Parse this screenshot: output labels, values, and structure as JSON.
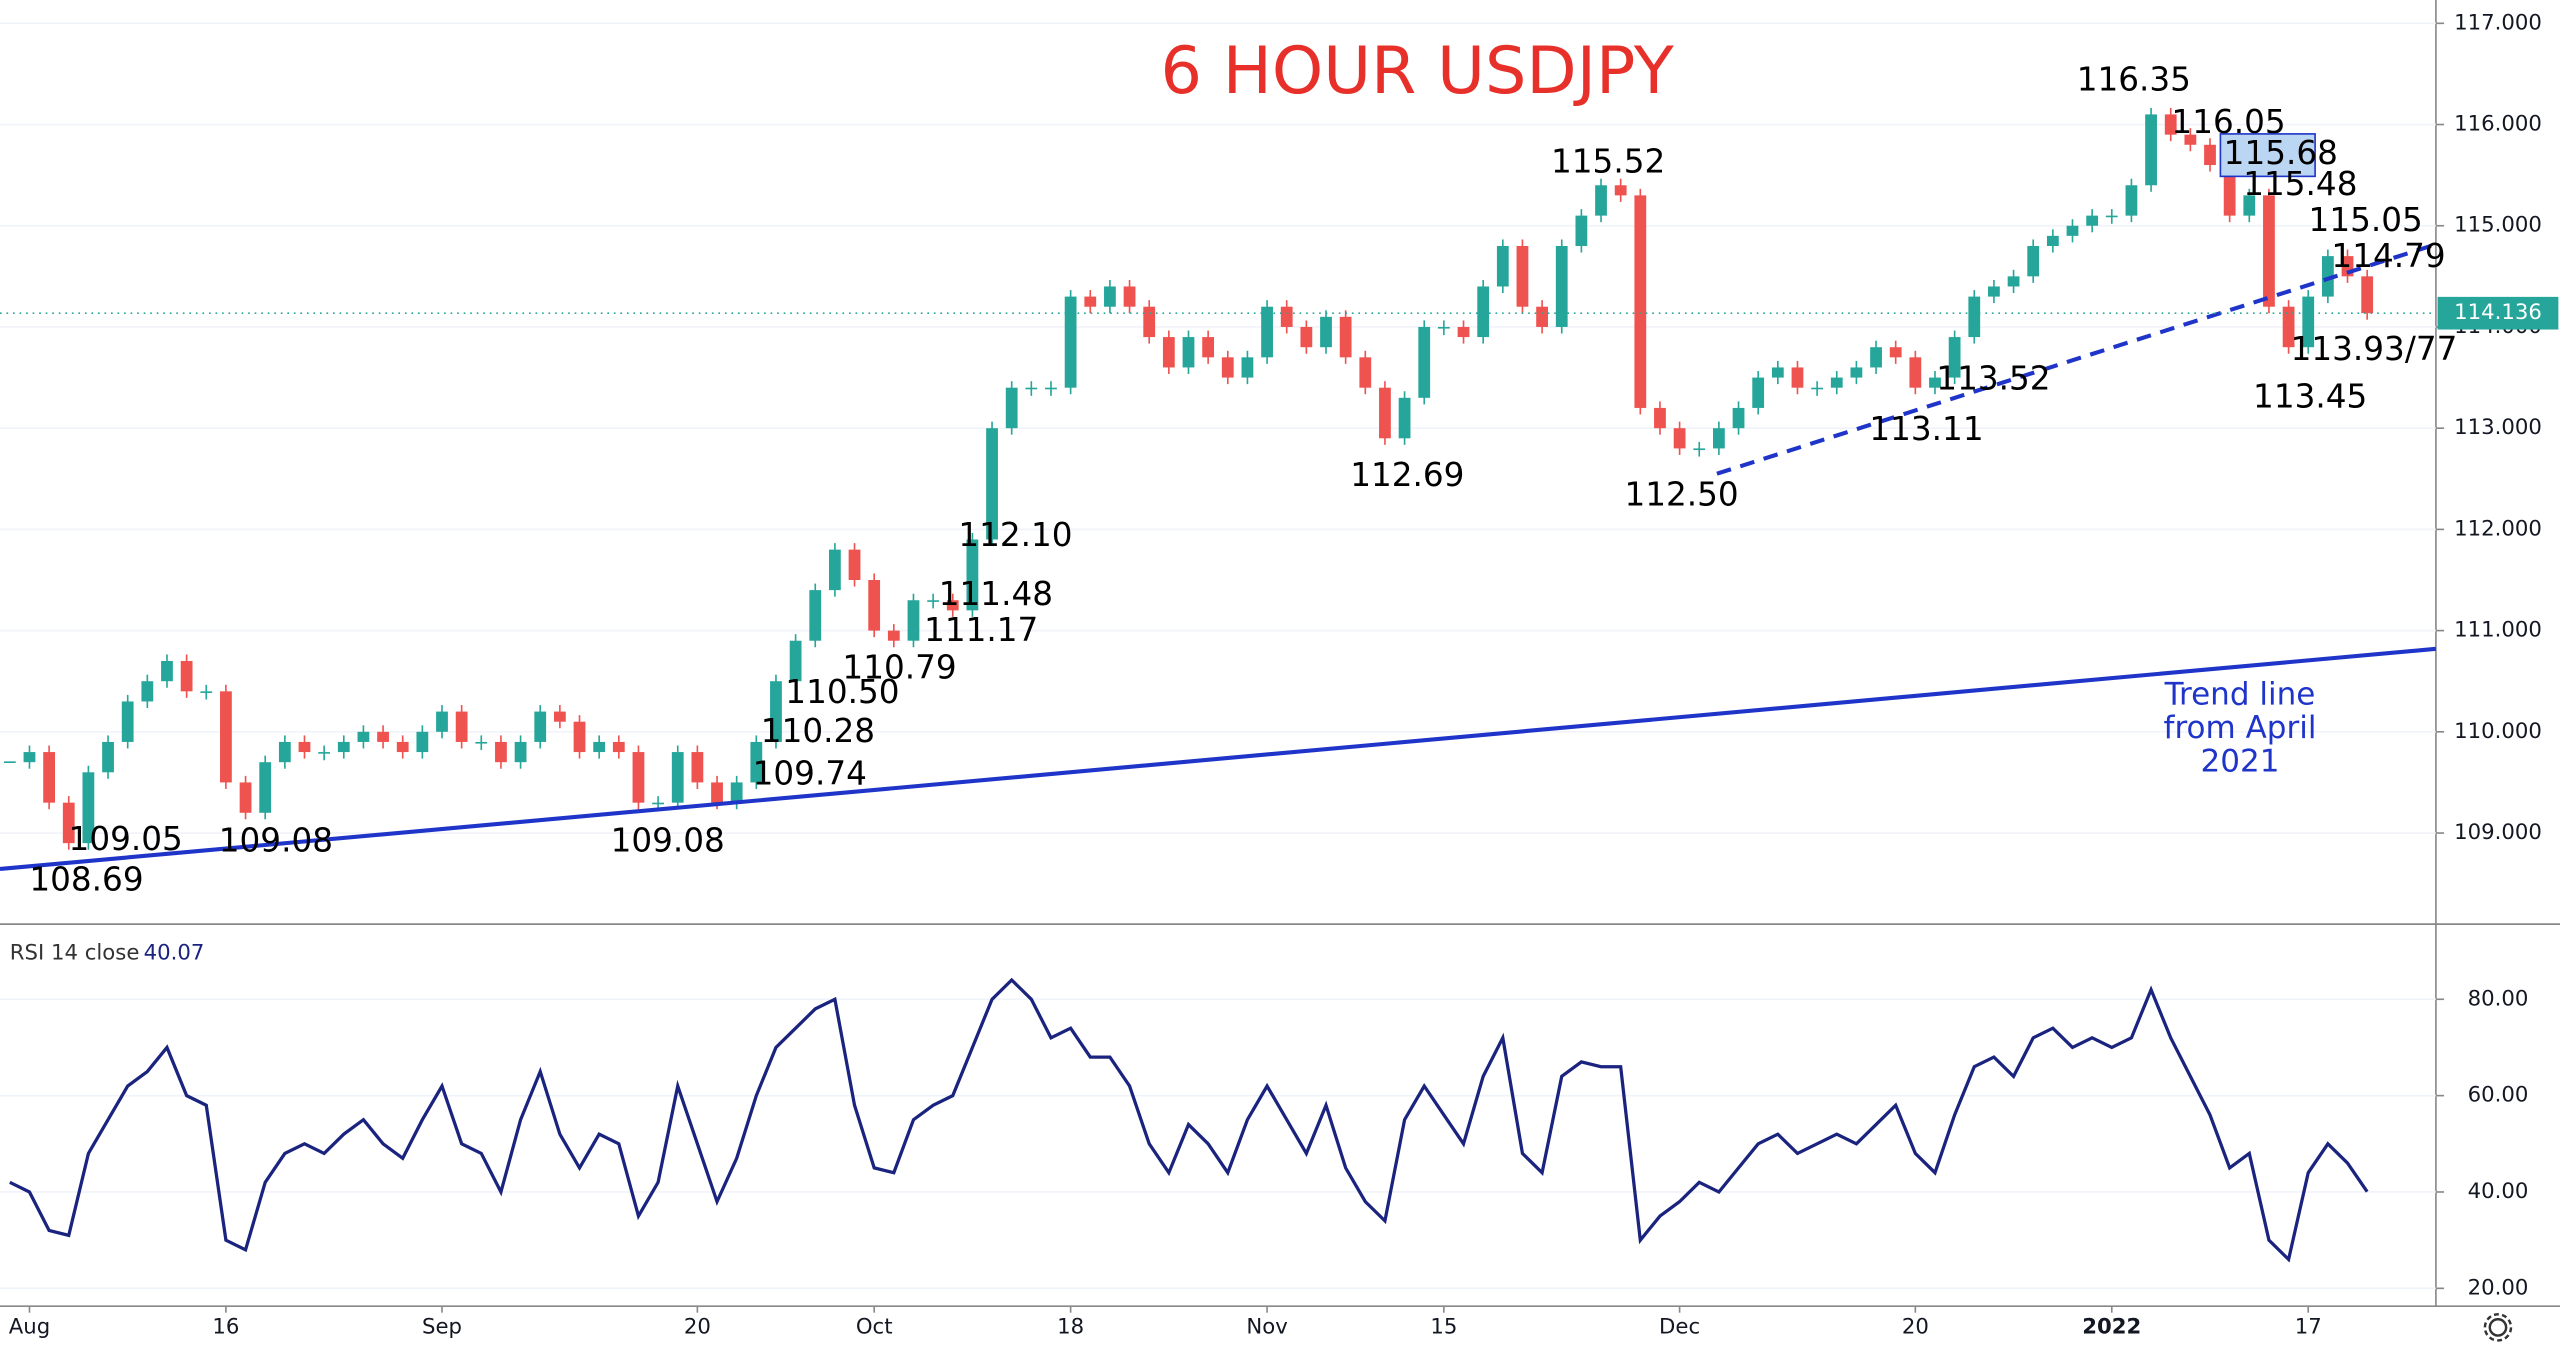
{
  "chart_data": [
    {
      "type": "candlestick",
      "title": "6 HOUR USDJPY",
      "title_color": "#e8302a",
      "up_color": "#26a69a",
      "down_color": "#ef5350",
      "values": [
        109.7,
        109.8,
        109.3,
        108.9,
        109.6,
        109.9,
        110.3,
        110.5,
        110.7,
        110.4,
        110.4,
        109.5,
        109.2,
        109.7,
        109.9,
        109.8,
        109.8,
        109.9,
        110.0,
        109.9,
        109.8,
        110.0,
        110.2,
        109.9,
        109.9,
        109.7,
        109.9,
        110.2,
        110.1,
        109.8,
        109.9,
        109.8,
        109.3,
        109.3,
        109.8,
        109.5,
        109.3,
        109.5,
        109.9,
        110.5,
        110.9,
        111.4,
        111.8,
        111.5,
        111.0,
        110.9,
        111.3,
        111.3,
        111.2,
        111.9,
        113.0,
        113.4,
        113.4,
        113.4,
        114.3,
        114.2,
        114.4,
        114.2,
        113.9,
        113.6,
        113.9,
        113.7,
        113.5,
        113.7,
        114.2,
        114.0,
        113.8,
        114.1,
        113.7,
        113.4,
        112.9,
        113.3,
        114.0,
        114.0,
        113.9,
        114.4,
        114.8,
        114.2,
        114.0,
        114.8,
        115.1,
        115.4,
        115.3,
        113.2,
        113.0,
        112.8,
        112.8,
        113.0,
        113.2,
        113.5,
        113.6,
        113.4,
        113.4,
        113.5,
        113.6,
        113.8,
        113.7,
        113.4,
        113.5,
        113.9,
        114.3,
        114.4,
        114.5,
        114.8,
        114.9,
        115.0,
        115.1,
        115.1,
        115.4,
        116.1,
        115.9,
        115.8,
        115.6,
        115.1,
        115.3,
        114.2,
        113.8,
        114.3,
        114.7,
        114.5,
        114.136
      ],
      "last_price": 114.136,
      "xlim": [
        -0.5,
        123.5
      ],
      "ylim": [
        108.1,
        117.23
      ],
      "yticks": [
        {
          "value": 109,
          "label": "109.000"
        },
        {
          "value": 110,
          "label": "110.000"
        },
        {
          "value": 111,
          "label": "111.000"
        },
        {
          "value": 112,
          "label": "112.000"
        },
        {
          "value": 113,
          "label": "113.000"
        },
        {
          "value": 114,
          "label": "114.000"
        },
        {
          "value": 115,
          "label": "115.000"
        },
        {
          "value": 116,
          "label": "116.000"
        },
        {
          "value": 117,
          "label": "117.000"
        }
      ],
      "grid": true,
      "annotations": [
        "116.35",
        "116.05",
        "115.68",
        "115.48",
        "115.05",
        "114.79",
        "113.93/77",
        "113.45",
        "115.52",
        "113.52",
        "113.11",
        "112.50",
        "112.69",
        "112.10",
        "111.48",
        "111.17",
        "110.79",
        "110.50",
        "110.28",
        "109.74",
        "109.08",
        "109.08",
        "109.05",
        "108.69"
      ],
      "trend_note": [
        "Trend line",
        "from April",
        "2021"
      ],
      "lines": [
        {
          "style": "solid",
          "color": "#1f35c9",
          "x": [
            -0.5,
            123.5
          ],
          "y": [
            108.645,
            110.82
          ]
        },
        {
          "style": "dashed",
          "color": "#1f35c9",
          "x": [
            86.9,
            123.4
          ],
          "y": [
            112.55,
            114.81
          ]
        }
      ]
    },
    {
      "type": "line",
      "title": "RSI 14 close",
      "color": "#1a237e",
      "values": [
        42,
        40,
        32,
        31,
        48,
        55,
        62,
        65,
        70,
        60,
        58,
        30,
        28,
        42,
        48,
        50,
        48,
        52,
        55,
        50,
        47,
        55,
        62,
        50,
        48,
        40,
        55,
        65,
        52,
        45,
        52,
        50,
        35,
        42,
        62,
        50,
        38,
        47,
        60,
        70,
        74,
        78,
        80,
        58,
        45,
        44,
        55,
        58,
        60,
        70,
        80,
        84,
        80,
        72,
        74,
        68,
        68,
        62,
        50,
        44,
        54,
        50,
        44,
        55,
        62,
        55,
        48,
        58,
        45,
        38,
        34,
        55,
        62,
        56,
        50,
        64,
        72,
        48,
        44,
        64,
        67,
        66,
        66,
        30,
        35,
        38,
        42,
        40,
        45,
        50,
        52,
        48,
        50,
        52,
        50,
        54,
        58,
        48,
        44,
        56,
        66,
        68,
        64,
        72,
        74,
        70,
        72,
        70,
        72,
        82,
        72,
        64,
        56,
        45,
        48,
        30,
        26,
        44,
        50,
        46,
        40.07
      ],
      "xlim": [
        -0.5,
        123.5
      ],
      "ylim": [
        16.3,
        95.6
      ],
      "yticks": [
        {
          "value": 20,
          "label": "20.00"
        },
        {
          "value": 40,
          "label": "40.00"
        },
        {
          "value": 60,
          "label": "60.00"
        },
        {
          "value": 80,
          "label": "80.00"
        }
      ],
      "xticks": [
        {
          "value": 1,
          "label": "Aug"
        },
        {
          "value": 11,
          "label": "16"
        },
        {
          "value": 22,
          "label": "Sep"
        },
        {
          "value": 35,
          "label": "20"
        },
        {
          "value": 44,
          "label": "Oct"
        },
        {
          "value": 54,
          "label": "18"
        },
        {
          "value": 64,
          "label": "Nov"
        },
        {
          "value": 73,
          "label": "15"
        },
        {
          "value": 85,
          "label": "Dec"
        },
        {
          "value": 97,
          "label": "20"
        },
        {
          "value": 107,
          "label": "2022"
        },
        {
          "value": 117,
          "label": "17"
        }
      ]
    }
  ]
}
